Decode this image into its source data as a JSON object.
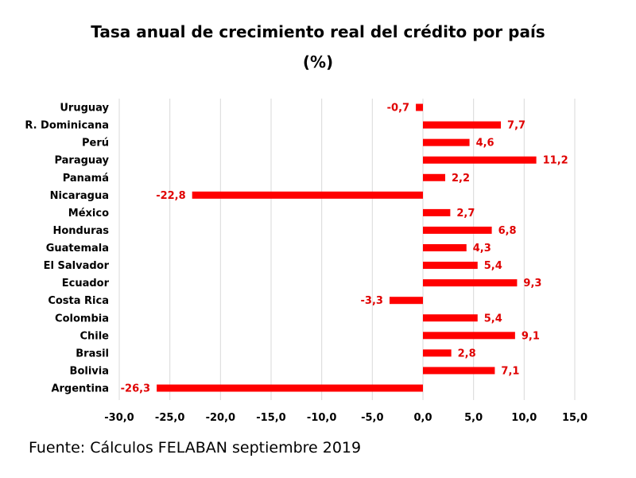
{
  "title": "Tasa anual de crecimiento real del crédito por país",
  "subtitle": "(%)",
  "source": "Fuente: Cálculos FELABAN septiembre 2019",
  "chart_data": {
    "type": "bar",
    "orientation": "horizontal",
    "categories": [
      "Uruguay",
      "R. Dominicana",
      "Perú",
      "Paraguay",
      "Panamá",
      "Nicaragua",
      "México",
      "Honduras",
      "Guatemala",
      "El Salvador",
      "Ecuador",
      "Costa Rica",
      "Colombia",
      "Chile",
      "Brasil",
      "Bolivia",
      "Argentina"
    ],
    "values": [
      -0.7,
      7.7,
      4.6,
      11.2,
      2.2,
      -22.8,
      2.7,
      6.8,
      4.3,
      5.4,
      9.3,
      -3.3,
      5.4,
      9.1,
      2.8,
      7.1,
      -26.3
    ],
    "value_labels": [
      "-0,7",
      "7,7",
      "4,6",
      "11,2",
      "2,2",
      "-22,8",
      "2,7",
      "6,8",
      "4,3",
      "5,4",
      "9,3",
      "-3,3",
      "5,4",
      "9,1",
      "2,8",
      "7,1",
      "-26,3"
    ],
    "xlim": [
      -30,
      15
    ],
    "xticks": [
      -30,
      -25,
      -20,
      -15,
      -10,
      -5,
      0,
      5,
      10,
      15
    ],
    "xtick_labels": [
      "-30,0",
      "-25,0",
      "-20,0",
      "-15,0",
      "-10,0",
      "-5,0",
      "0,0",
      "5,0",
      "10,0",
      "15,0"
    ],
    "grid": "vertical",
    "bar_color": "#ff0000",
    "label_color": "#e00000",
    "grid_color": "#d9d9d9"
  }
}
